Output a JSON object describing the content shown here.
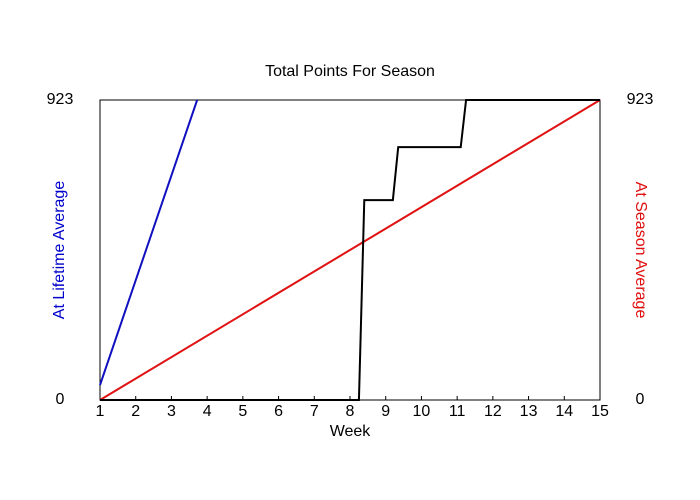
{
  "chart_data": {
    "type": "line",
    "title": "Total Points For Season",
    "xlabel": "Week",
    "ylabel": "At Lifetime Average",
    "y2label": "At Season Average",
    "ylabel_color": "#0000cc",
    "y2label_color": "#e01010",
    "xlim": [
      1,
      15
    ],
    "xticks": [
      1,
      2,
      3,
      4,
      5,
      6,
      7,
      8,
      9,
      10,
      11,
      12,
      13,
      14,
      15
    ],
    "ylim": [
      0,
      923
    ],
    "yticks": [
      0,
      923
    ],
    "y2lim": [
      0,
      923
    ],
    "y2ticks": [
      0,
      923
    ],
    "series": [
      {
        "color": "#1010c0",
        "x": [
          1,
          3.72
        ],
        "values": [
          46,
          923
        ]
      },
      {
        "color": "#e01010",
        "axis": "y2",
        "x": [
          1,
          15
        ],
        "values": [
          0,
          923
        ]
      },
      {
        "color": "#000000",
        "x": [
          1,
          8.25,
          8.4,
          9.2,
          9.35,
          11.1,
          11.25,
          15
        ],
        "values": [
          0,
          0,
          615,
          615,
          778,
          778,
          923,
          923
        ]
      }
    ]
  }
}
